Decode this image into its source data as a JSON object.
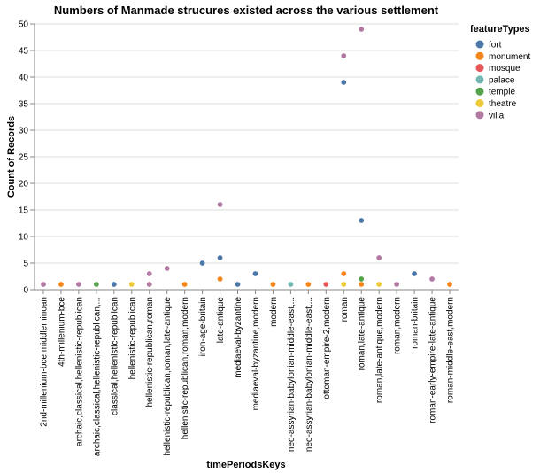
{
  "chart_data": {
    "type": "scatter",
    "title": "Numbers of Manmade strucures existed across the various settlement",
    "xlabel": "timePeriodsKeys",
    "ylabel": "Count of Records",
    "ylim": [
      0,
      50
    ],
    "yticks": [
      0,
      5,
      10,
      15,
      20,
      25,
      30,
      35,
      40,
      45,
      50
    ],
    "grid": true,
    "legend": {
      "title": "featureTypes",
      "position": "top-right",
      "items": [
        {
          "name": "fort",
          "color": "#4c78a8"
        },
        {
          "name": "monument",
          "color": "#f58518"
        },
        {
          "name": "mosque",
          "color": "#e45756"
        },
        {
          "name": "palace",
          "color": "#72b7b2"
        },
        {
          "name": "temple",
          "color": "#54a24b"
        },
        {
          "name": "theatre",
          "color": "#eeca3b"
        },
        {
          "name": "villa",
          "color": "#b279a2"
        }
      ]
    },
    "categories": [
      "2nd-millenium-bce,middleminoan",
      "4th-millenium-bce",
      "archaic,classical,hellenistic-republican",
      "archaic,classical,hellenistic-republican,...",
      "classical,hellenistic-republican",
      "hellenistic-republican",
      "hellenistic-republican,roman",
      "hellenistic-republican,roman,late-antique",
      "hellenistic-republican,roman,modern",
      "iron-age-britain",
      "late-antique",
      "mediaeval-byzantine",
      "mediaeval-byzantine,modern",
      "modern",
      "neo-assyrian-babylonian-middle-east,...",
      "neo-assyrian-babylonian-middle-east,...",
      "ottoman-empire-2,modern",
      "roman",
      "roman,late-antique",
      "roman,late-antique,modern",
      "roman,modern",
      "roman-britain",
      "roman-early-empire-late-antique",
      "roman-middle-east,modern"
    ],
    "points": [
      {
        "x": 0,
        "type": "villa",
        "y": 1
      },
      {
        "x": 1,
        "type": "monument",
        "y": 1
      },
      {
        "x": 2,
        "type": "villa",
        "y": 1
      },
      {
        "x": 3,
        "type": "temple",
        "y": 1
      },
      {
        "x": 4,
        "type": "fort",
        "y": 1
      },
      {
        "x": 5,
        "type": "theatre",
        "y": 1
      },
      {
        "x": 6,
        "type": "theatre",
        "y": 1
      },
      {
        "x": 6,
        "type": "villa",
        "y": 3
      },
      {
        "x": 6,
        "type": "villa",
        "y": 1
      },
      {
        "x": 7,
        "type": "villa",
        "y": 4
      },
      {
        "x": 8,
        "type": "monument",
        "y": 1
      },
      {
        "x": 9,
        "type": "fort",
        "y": 5
      },
      {
        "x": 10,
        "type": "villa",
        "y": 16
      },
      {
        "x": 10,
        "type": "fort",
        "y": 6
      },
      {
        "x": 10,
        "type": "monument",
        "y": 2
      },
      {
        "x": 11,
        "type": "fort",
        "y": 1
      },
      {
        "x": 12,
        "type": "fort",
        "y": 3
      },
      {
        "x": 13,
        "type": "monument",
        "y": 1
      },
      {
        "x": 14,
        "type": "palace",
        "y": 1
      },
      {
        "x": 15,
        "type": "monument",
        "y": 1
      },
      {
        "x": 16,
        "type": "mosque",
        "y": 1
      },
      {
        "x": 17,
        "type": "villa",
        "y": 44
      },
      {
        "x": 17,
        "type": "fort",
        "y": 39
      },
      {
        "x": 17,
        "type": "monument",
        "y": 3
      },
      {
        "x": 17,
        "type": "theatre",
        "y": 1
      },
      {
        "x": 18,
        "type": "villa",
        "y": 49
      },
      {
        "x": 18,
        "type": "fort",
        "y": 13
      },
      {
        "x": 18,
        "type": "temple",
        "y": 2
      },
      {
        "x": 18,
        "type": "monument",
        "y": 1
      },
      {
        "x": 19,
        "type": "villa",
        "y": 6
      },
      {
        "x": 19,
        "type": "theatre",
        "y": 1
      },
      {
        "x": 20,
        "type": "villa",
        "y": 1
      },
      {
        "x": 21,
        "type": "fort",
        "y": 3
      },
      {
        "x": 22,
        "type": "villa",
        "y": 2
      },
      {
        "x": 23,
        "type": "monument",
        "y": 1
      }
    ]
  }
}
